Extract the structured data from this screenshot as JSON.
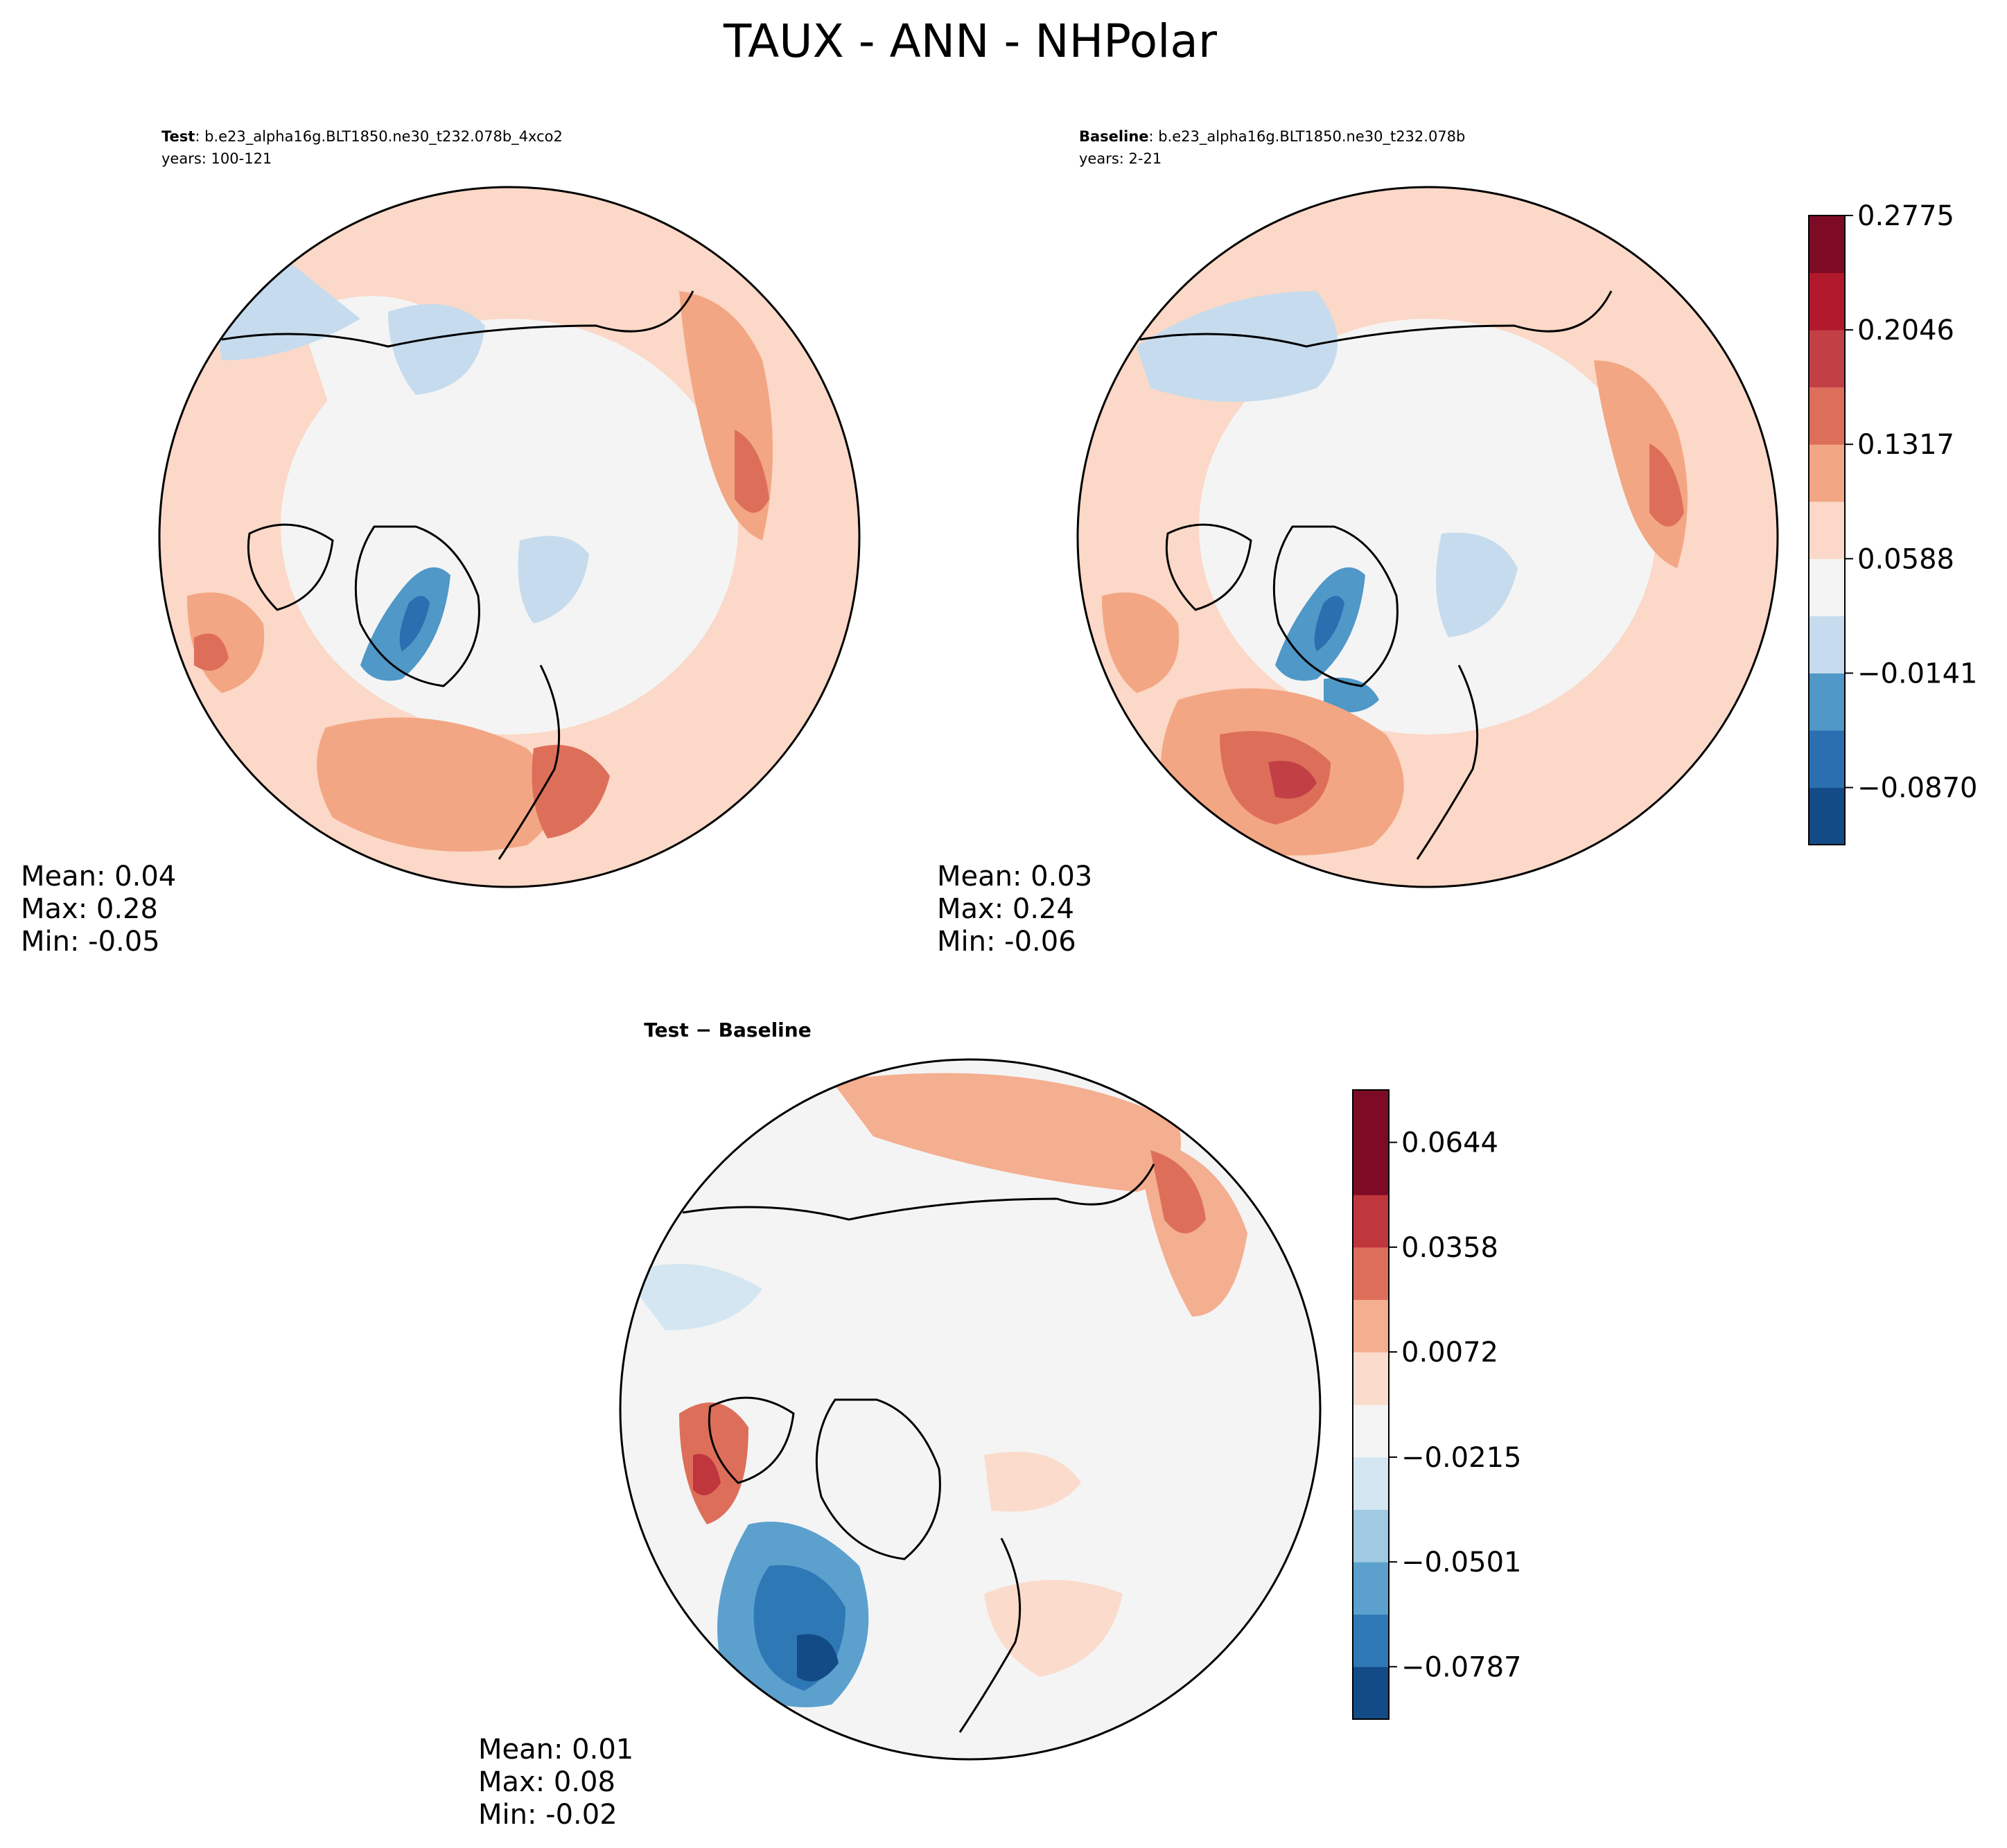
{
  "figure": {
    "title": "TAUX - ANN - NHPolar"
  },
  "colors": {
    "test_baseline_scale": [
      "#134b87",
      "#2b6fb0",
      "#4f98c8",
      "#c6dcee",
      "#f4f4f4",
      "#fbd8c7",
      "#f3a683",
      "#dd6f5a",
      "#c24045",
      "#b2182b",
      "#7d0b25"
    ],
    "diff_scale": [
      "#134b87",
      "#2f78b6",
      "#5ca1ce",
      "#9fcae2",
      "#d4e6f2",
      "#f4f4f4",
      "#fbdccc",
      "#f4ae90",
      "#dd6f5a",
      "#c0363d",
      "#7d0b25"
    ],
    "land_outline": "#000000"
  },
  "chart_data": [
    {
      "type": "heatmap",
      "panel": "test",
      "projection": "north-polar-stereographic",
      "label_bold": "Test",
      "label_rest": ": b.e23_alpha16g.BLT1850.ne30_t232.078b_4xco2",
      "years": "years: 100-121",
      "stats": [
        "Mean:  0.04",
        "Max:  0.28",
        "Min: -0.05"
      ],
      "stat_values": {
        "mean": 0.04,
        "max": 0.28,
        "min": -0.05
      },
      "fill_fraction_hint": "mostly positive (0.0–0.16), negative streaks near Greenland/Baffin"
    },
    {
      "type": "heatmap",
      "panel": "baseline",
      "projection": "north-polar-stereographic",
      "label_bold": "Baseline",
      "label_rest": ": b.e23_alpha16g.BLT1850.ne30_t232.078b",
      "years": "years: 2-21",
      "stats": [
        "Mean:  0.03",
        "Max:  0.24",
        "Min: -0.06"
      ],
      "stat_values": {
        "mean": 0.03,
        "max": 0.24,
        "min": -0.06
      },
      "colorbar": {
        "levels": [
          -0.1234,
          -0.087,
          -0.0505,
          -0.0141,
          0.0224,
          0.0588,
          0.0953,
          0.1317,
          0.1682,
          0.2046,
          0.2411,
          0.2775
        ],
        "tick_values": [
          -0.087,
          -0.0141,
          0.0588,
          0.1317,
          0.2046,
          0.2775
        ],
        "tick_labels": [
          "−0.0870",
          "−0.0141",
          "0.0588",
          "0.1317",
          "0.2046",
          "0.2775"
        ]
      }
    },
    {
      "type": "heatmap",
      "panel": "difference",
      "projection": "north-polar-stereographic",
      "label_bold": "Test − Baseline",
      "stats": [
        "Mean:  0.01",
        "Max:  0.08",
        "Min: -0.02"
      ],
      "stat_values": {
        "mean": 0.01,
        "max": 0.08,
        "min": -0.02
      },
      "colorbar": {
        "levels": [
          -0.093,
          -0.0787,
          -0.0644,
          -0.0501,
          -0.0358,
          -0.0215,
          -0.0072,
          0.0072,
          0.0215,
          0.0358,
          0.0501,
          0.0644,
          0.0787
        ],
        "tick_values": [
          -0.0787,
          -0.0501,
          -0.0215,
          0.0072,
          0.0358,
          0.0644
        ],
        "tick_labels": [
          "−0.0787",
          "−0.0501",
          "−0.0215",
          "0.0072",
          "0.0358",
          "0.0644"
        ]
      }
    }
  ]
}
